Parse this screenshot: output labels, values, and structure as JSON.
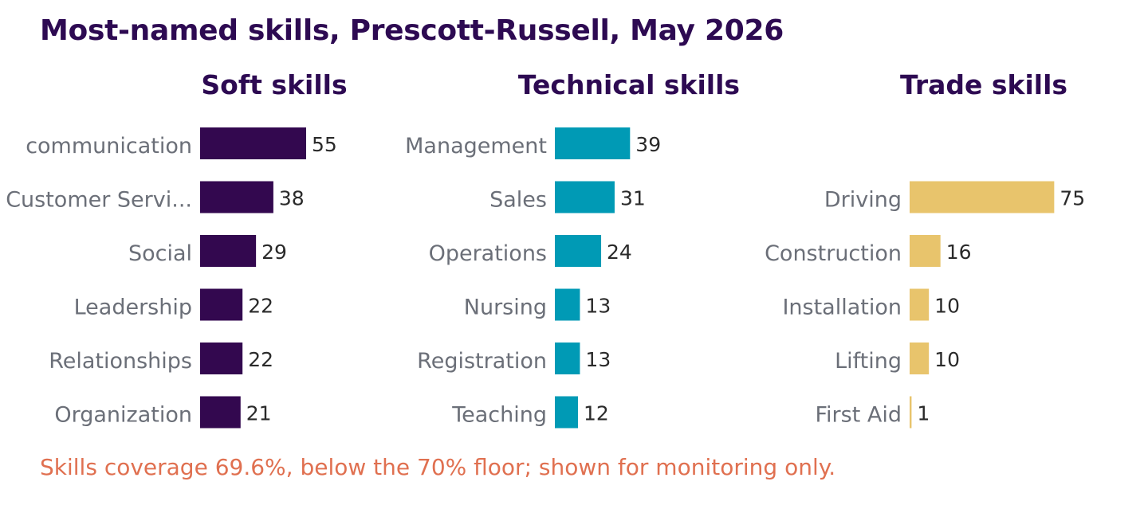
{
  "title": "Most-named skills, Prescott-Russell, May 2026",
  "note": "Skills coverage 69.6%, below the 70% floor; shown for monitoring only.",
  "chart_data": [
    {
      "type": "bar",
      "orientation": "horizontal",
      "title": "Soft skills",
      "color": "#33084f",
      "categories": [
        "communication",
        "Customer Servi...",
        "Social",
        "Leadership",
        "Relationships",
        "Organization"
      ],
      "values": [
        55,
        38,
        29,
        22,
        22,
        21
      ],
      "xlim": [
        0,
        75
      ]
    },
    {
      "type": "bar",
      "orientation": "horizontal",
      "title": "Technical skills",
      "color": "#009ab5",
      "categories": [
        "Management",
        "Sales",
        "Operations",
        "Nursing",
        "Registration",
        "Teaching"
      ],
      "values": [
        39,
        31,
        24,
        13,
        13,
        12
      ],
      "xlim": [
        0,
        75
      ]
    },
    {
      "type": "bar",
      "orientation": "horizontal",
      "title": "Trade skills",
      "color": "#e8c46c",
      "categories": [
        "",
        "Driving",
        "Construction",
        "Installation",
        "Lifting",
        "First Aid"
      ],
      "values": [
        null,
        75,
        16,
        10,
        10,
        1
      ],
      "xlim": [
        0,
        75
      ]
    }
  ]
}
